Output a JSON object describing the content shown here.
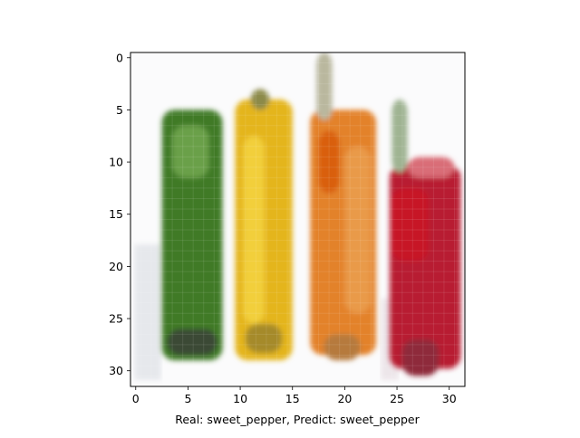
{
  "xlabel": "Real: sweet_pepper, Predict: sweet_pepper",
  "x_ticks": [
    "0",
    "5",
    "10",
    "15",
    "20",
    "25",
    "30"
  ],
  "y_ticks": [
    "0",
    "5",
    "10",
    "15",
    "20",
    "25",
    "30"
  ],
  "image": {
    "pixel_grid": "32x32",
    "content": [
      {
        "name": "green-pepper",
        "color": "#3f7a25"
      },
      {
        "name": "yellow-pepper",
        "color": "#e4b51b"
      },
      {
        "name": "orange-pepper",
        "color": "#e3822a"
      },
      {
        "name": "red-pepper",
        "color": "#b81f30"
      }
    ]
  }
}
